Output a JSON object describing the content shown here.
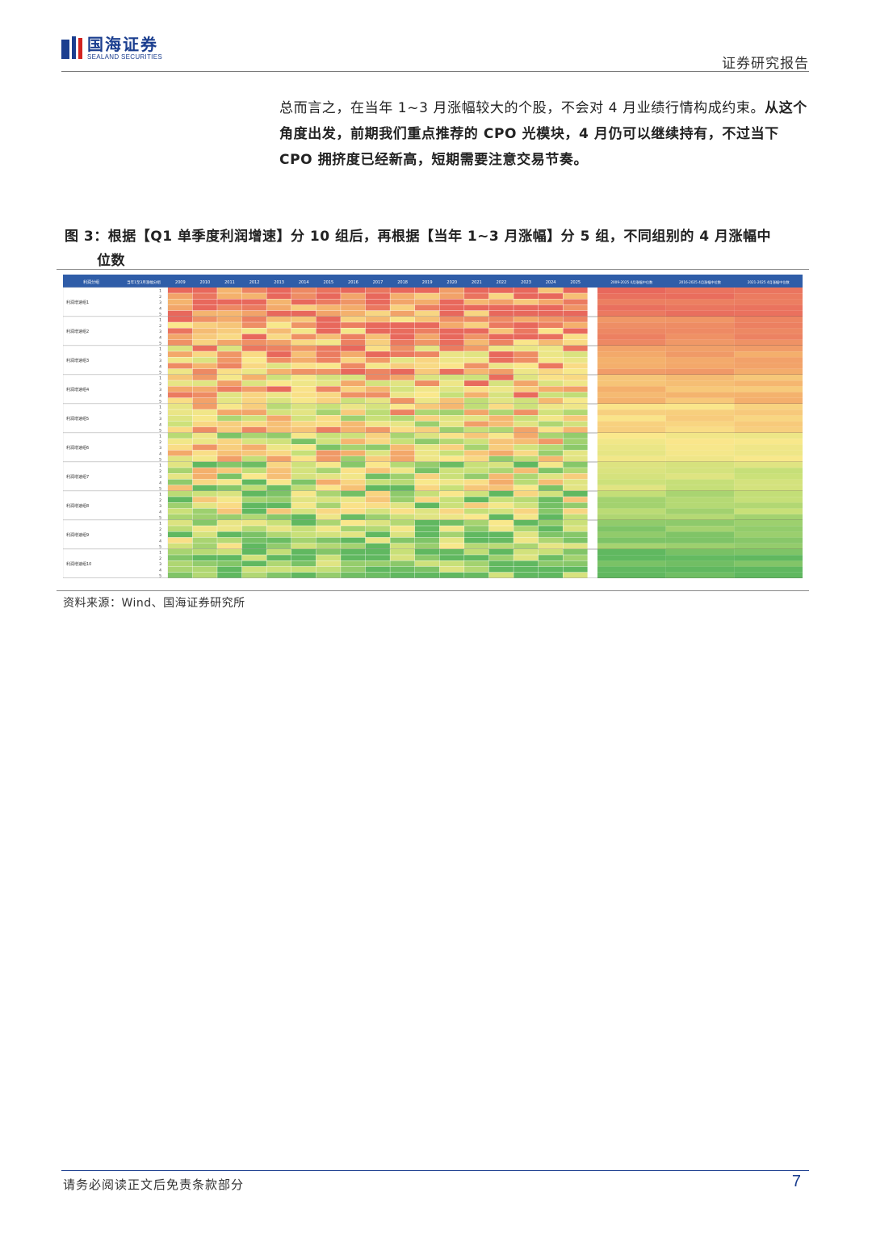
{
  "header": {
    "logo_cn": "国海证券",
    "logo_en": "SEALAND SECURITIES",
    "doc_type": "证券研究报告"
  },
  "body": {
    "para_normal": "总而言之，在当年 1~3 月涨幅较大的个股，不会对 4 月业绩行情构成约束。",
    "para_bold": "从这个角度出发，前期我们重点推荐的 CPO 光模块，4 月仍可以继续持有，不过当下 CPO 拥挤度已经新高，短期需要注意交易节奏。"
  },
  "figure": {
    "title_line1": "图 3：根据【Q1 单季度利润增速】分 10 组后，再根据【当年 1~3 月涨幅】分 5 组，不同组别的 4 月涨幅中",
    "title_line2": "位数",
    "source": "资料来源：Wind、国海证券研究所"
  },
  "table": {
    "group_header": "利润分组",
    "subgroup_header": "当年1至3月涨幅分组",
    "years": [
      "2009",
      "2010",
      "2011",
      "2012",
      "2013",
      "2014",
      "2015",
      "2016",
      "2017",
      "2018",
      "2019",
      "2020",
      "2021",
      "2022",
      "2023",
      "2024",
      "2025"
    ],
    "summary_headers": [
      "2009-2025 4月涨幅中位数",
      "2016-2025 4月涨幅中位数",
      "2021-2025 4月涨幅中位数"
    ],
    "groups": [
      "利润增速组1",
      "利润增速组2",
      "利润增速组3",
      "利润增速组4",
      "利润增速组5",
      "利润增速组6",
      "利润增速组7",
      "利润增速组8",
      "利润增速组9",
      "利润增速组10"
    ],
    "sub_ranks": [
      "1",
      "2",
      "3",
      "4",
      "5"
    ]
  },
  "footer": {
    "disclaimer": "请务必阅读正文后免责条款部分",
    "page_number": "7"
  }
}
